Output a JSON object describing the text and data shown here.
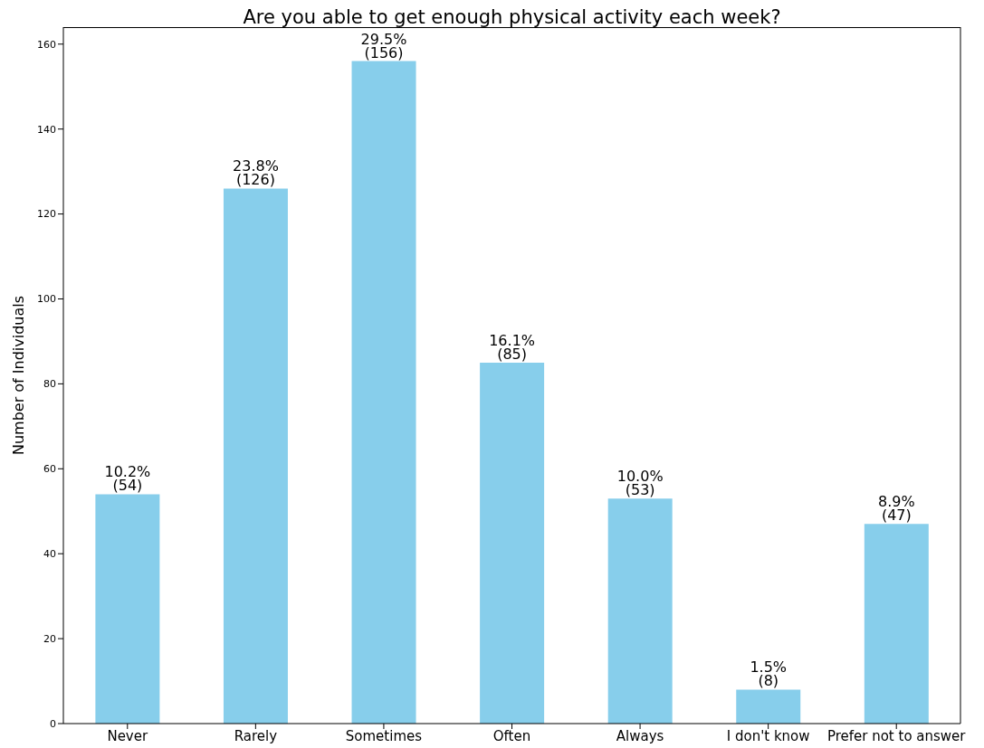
{
  "chart_data": {
    "type": "bar",
    "title": "Are you able to get enough physical activity each week?",
    "ylabel": "Number of Individuals",
    "categories": [
      "Never",
      "Rarely",
      "Sometimes",
      "Often",
      "Always",
      "I don't know",
      "Prefer not to answer"
    ],
    "values": [
      54,
      126,
      156,
      85,
      53,
      8,
      47
    ],
    "value_labels": [
      "10.2%\n(54)",
      "23.8%\n(126)",
      "29.5%\n(156)",
      "16.1%\n(85)",
      "10.0%\n(53)",
      "1.5%\n(8)",
      "8.9%\n(47)"
    ],
    "color": "#87ceeb",
    "ylim": [
      0,
      164
    ],
    "yticks": [
      0,
      20,
      40,
      60,
      80,
      100,
      120,
      140,
      160
    ],
    "grid": false,
    "legend": false
  }
}
